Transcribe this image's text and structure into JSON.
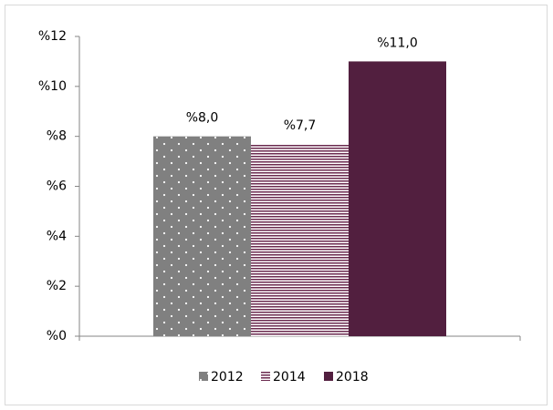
{
  "chart_data": {
    "type": "bar",
    "categories": [
      null
    ],
    "series": [
      {
        "name": "2012",
        "color": "#808080",
        "pattern": "dots",
        "values": [
          8.0
        ],
        "value_labels": [
          "%8,0"
        ]
      },
      {
        "name": "2014",
        "color": "#6b2a4f",
        "pattern": "stripes",
        "values": [
          7.7
        ],
        "value_labels": [
          "%7,7"
        ]
      },
      {
        "name": "2018",
        "color": "#521f3f",
        "pattern": "solid",
        "values": [
          11.0
        ],
        "value_labels": [
          "%11,0"
        ]
      }
    ],
    "ylim": [
      0,
      12
    ],
    "yticks": [
      {
        "value": 0,
        "label": "%0"
      },
      {
        "value": 2,
        "label": "%2"
      },
      {
        "value": 4,
        "label": "%4"
      },
      {
        "value": 6,
        "label": "%6"
      },
      {
        "value": 8,
        "label": "%8"
      },
      {
        "value": 10,
        "label": "%10"
      },
      {
        "value": 12,
        "label": "%12"
      }
    ],
    "grid": false,
    "legend": "bottom"
  }
}
